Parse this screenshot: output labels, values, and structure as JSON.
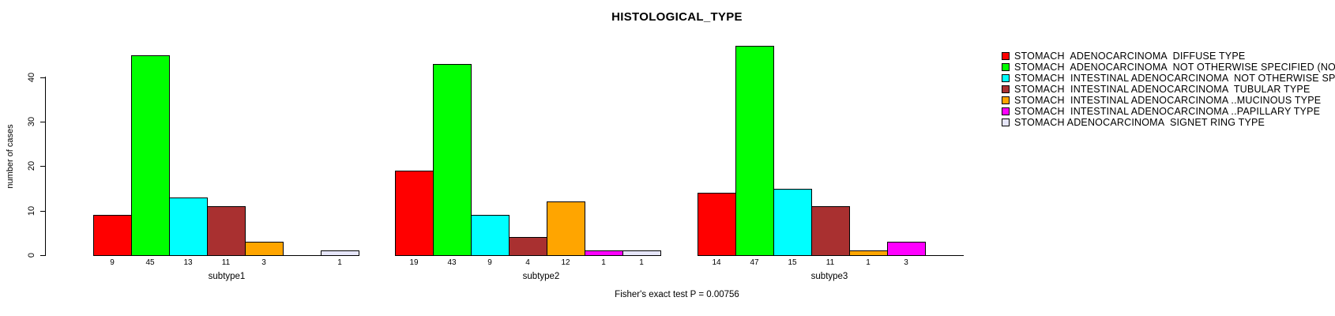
{
  "title": "HISTOLOGICAL_TYPE",
  "chart_data": {
    "type": "bar",
    "title": "HISTOLOGICAL_TYPE",
    "ylabel": "number of cases",
    "xlabel": "",
    "yticks": [
      0,
      10,
      20,
      30,
      40
    ],
    "ylim": [
      0,
      47
    ],
    "grid": false,
    "legend_position": "right",
    "annotation": "Fisher's exact test P = 0.00756",
    "categories": [
      "STOMACH  ADENOCARCINOMA  DIFFUSE TYPE",
      "STOMACH  ADENOCARCINOMA  NOT OTHERWISE SPECIFIED (NOS)",
      "STOMACH  INTESTINAL ADENOCARCINOMA  NOT OTHERWISE SPECIFIED (NOS)",
      "STOMACH  INTESTINAL ADENOCARCINOMA  TUBULAR TYPE",
      "STOMACH  INTESTINAL ADENOCARCINOMA ..MUCINOUS TYPE",
      "STOMACH  INTESTINAL ADENOCARCINOMA ..PAPILLARY TYPE",
      "STOMACH ADENOCARCINOMA  SIGNET RING TYPE"
    ],
    "palette": [
      "#FF0000",
      "#00FF00",
      "#00FFFF",
      "#A93030",
      "#FFA500",
      "#FF00FF",
      "#E6E6FA"
    ],
    "groups": [
      {
        "label": "subtype1",
        "values": [
          9,
          45,
          13,
          11,
          3,
          0,
          1
        ]
      },
      {
        "label": "subtype2",
        "values": [
          19,
          43,
          9,
          4,
          12,
          1,
          1
        ]
      },
      {
        "label": "subtype3",
        "values": [
          14,
          47,
          15,
          11,
          1,
          3,
          0
        ]
      }
    ]
  }
}
